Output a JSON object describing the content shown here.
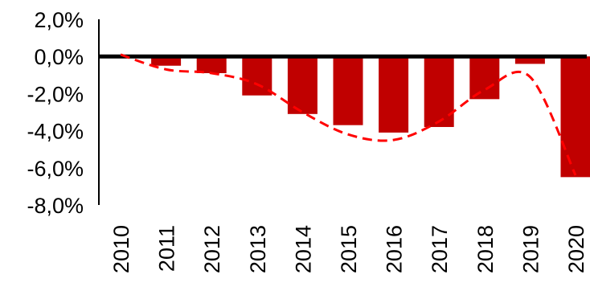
{
  "chart_data": {
    "type": "bar",
    "title": "",
    "xlabel": "",
    "ylabel": "",
    "ylim": [
      -8,
      2
    ],
    "y_ticks": [
      2,
      0,
      -2,
      -4,
      -6,
      -8
    ],
    "y_tick_labels": [
      "2,0%",
      "0,0%",
      "-2,0%",
      "-4,0%",
      "-6,0%",
      "-8,0%"
    ],
    "categories": [
      "2010",
      "2011",
      "2012",
      "2013",
      "2014",
      "2015",
      "2016",
      "2017",
      "2018",
      "2019",
      "2020"
    ],
    "series": [
      {
        "type": "bar",
        "color": "#c00000",
        "values": [
          0.0,
          -0.5,
          -0.9,
          -2.1,
          -3.1,
          -3.7,
          -4.1,
          -3.8,
          -2.3,
          -0.4,
          -6.5
        ]
      },
      {
        "type": "line",
        "style": "dashed",
        "color": "#ff0000",
        "values": [
          0.1,
          -0.7,
          -0.9,
          -1.5,
          -3.0,
          -4.2,
          -4.5,
          -3.5,
          -1.8,
          -1.1,
          -6.4
        ]
      }
    ],
    "x_label_rotation": "vertical",
    "grid": false,
    "legend": "none",
    "zero_line": true
  }
}
